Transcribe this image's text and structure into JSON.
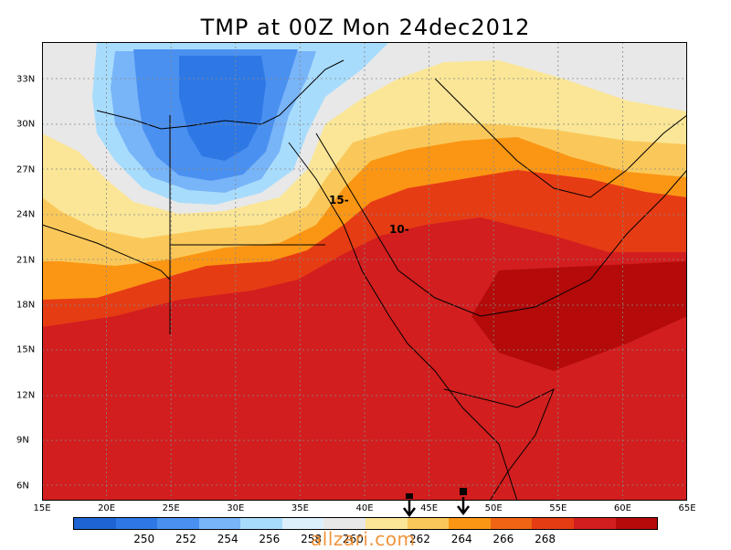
{
  "title": "TMP at 00Z Mon 24dec2012",
  "map": {
    "lat_labels": [
      "33N",
      "30N",
      "27N",
      "24N",
      "21N",
      "18N",
      "15N",
      "12N",
      "9N",
      "6N"
    ],
    "lon_labels": [
      "15E",
      "20E",
      "25E",
      "30E",
      "35E",
      "40E",
      "45E",
      "50E",
      "55E",
      "60E",
      "65E"
    ],
    "contour_labels": [
      "15-",
      "10-"
    ]
  },
  "colorbar": {
    "colors": [
      "#1e64d2",
      "#2e78e6",
      "#4a90f0",
      "#78b4f8",
      "#a8dcfc",
      "#dcf0fc",
      "#e8e8e8",
      "#fae696",
      "#fac85a",
      "#fa9614",
      "#f06414",
      "#e63c14",
      "#d21e1e",
      "#b40a0a"
    ],
    "labels": [
      "250",
      "252",
      "254",
      "256",
      "258",
      "260",
      "262",
      "264",
      "266",
      "268"
    ]
  },
  "watermark": "allzari.com"
}
